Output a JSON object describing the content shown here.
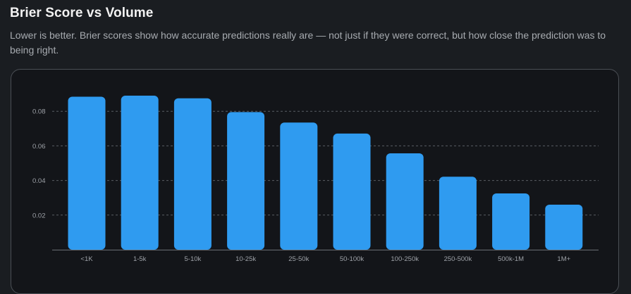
{
  "header": {
    "title": "Brier Score vs Volume",
    "subtitle": "Lower is better. Brier scores show how accurate predictions really are — not just if they were correct, but how close the prediction was to being right."
  },
  "colors": {
    "bar": "#2f9bf0",
    "grid": "#5a5e64",
    "axis": "#6a6e74",
    "background": "#131519"
  },
  "chart_data": {
    "type": "bar",
    "categories": [
      "<1K",
      "1-5k",
      "5-10k",
      "10-25k",
      "25-50k",
      "50-100k",
      "100-250k",
      "250-500k",
      "500k-1M",
      "1M+"
    ],
    "values": [
      0.0884,
      0.089,
      0.0875,
      0.0795,
      0.0735,
      0.0671,
      0.0557,
      0.0422,
      0.0325,
      0.026
    ],
    "y_ticks": [
      0.02,
      0.04,
      0.06,
      0.08
    ],
    "y_tick_labels": [
      "0.02",
      "0.04",
      "0.06",
      "0.08"
    ],
    "ylim": [
      0,
      0.096
    ],
    "grid": true,
    "grid_style": "dashed-horizontal"
  }
}
